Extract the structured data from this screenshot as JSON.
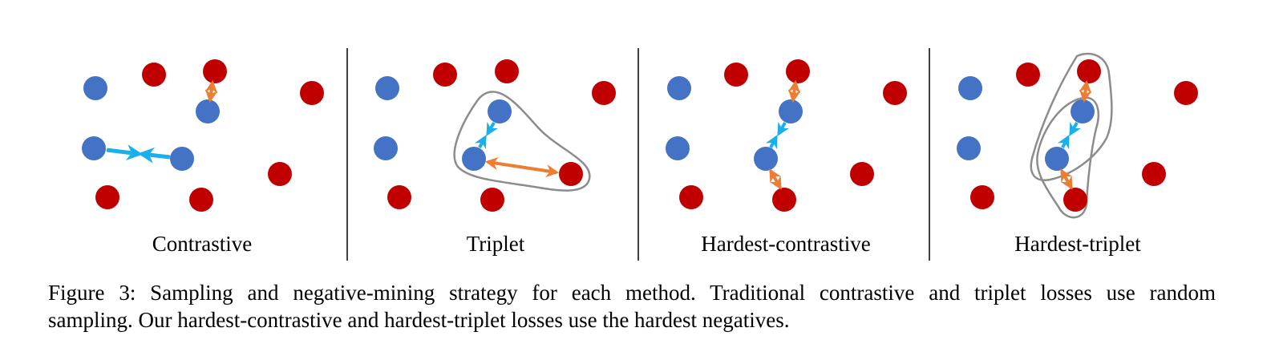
{
  "figure": {
    "colors": {
      "positive": "#4472c4",
      "negative": "#c00000",
      "positive_arrow": "#1ab0ec",
      "negative_arrow": "#ed7d31",
      "group_outline": "#8c8c8c",
      "divider": "#000000"
    },
    "panels": [
      {
        "id": "contrastive",
        "label": "Contrastive"
      },
      {
        "id": "triplet",
        "label": "Triplet"
      },
      {
        "id": "hardest-contrastive",
        "label": "Hardest-contrastive"
      },
      {
        "id": "hardest-triplet",
        "label": "Hardest-triplet"
      }
    ]
  },
  "caption": {
    "line1": "Figure 3:  Sampling and negative-mining strategy for each method.  Traditional contrastive and triplet losses use random",
    "line2": "sampling. Our hardest-contrastive and hardest-triplet losses use the hardest negatives."
  }
}
